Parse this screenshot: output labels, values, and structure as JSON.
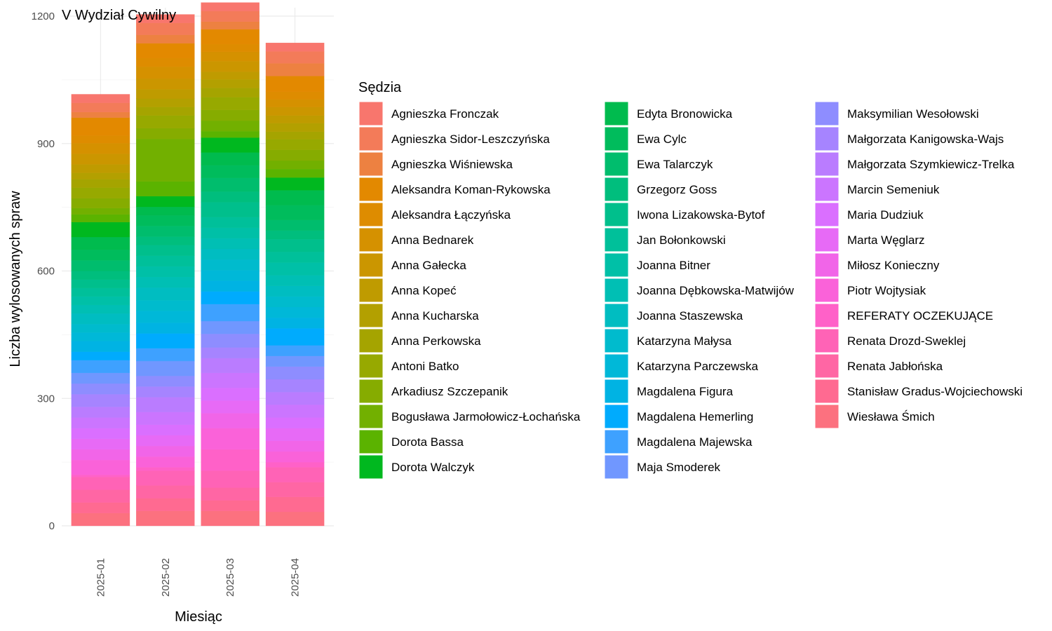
{
  "chart_data": {
    "type": "bar",
    "stacked": true,
    "title": "V Wydział Cywilny",
    "xlabel": "Miesiąc",
    "ylabel": "Liczba wylosowanych spraw",
    "ylim": [
      0,
      1200
    ],
    "yticks": [
      0,
      300,
      600,
      900,
      1200
    ],
    "grid": true,
    "legend_title": "Sędzia",
    "legend_position": "right",
    "categories": [
      "2025-01",
      "2025-02",
      "2025-03",
      "2025-04"
    ],
    "series": [
      {
        "name": "Agnieszka Fronczak",
        "color": "#F8766D",
        "values": [
          20,
          20,
          20,
          20
        ]
      },
      {
        "name": "Agnieszka Sidor-Leszczyńska",
        "color": "#F37B59",
        "values": [
          22,
          28,
          25,
          28
        ]
      },
      {
        "name": "Agnieszka Wiśniewska",
        "color": "#ED8141",
        "values": [
          13,
          20,
          18,
          30
        ]
      },
      {
        "name": "Aleksandra Koman-Rykowska",
        "color": "#E38900",
        "values": [
          42,
          35,
          35,
          37
        ]
      },
      {
        "name": "Aleksandra Łączyńska",
        "color": "#DE8C00",
        "values": [
          18,
          20,
          18,
          18
        ]
      },
      {
        "name": "Anna Bednarek",
        "color": "#D59100",
        "values": [
          25,
          28,
          22,
          18
        ]
      },
      {
        "name": "Anna Gałecka",
        "color": "#CB9600",
        "values": [
          25,
          25,
          25,
          20
        ]
      },
      {
        "name": "Anna Kopeć",
        "color": "#BF9B00",
        "values": [
          20,
          22,
          18,
          18
        ]
      },
      {
        "name": "Anna Kucharska",
        "color": "#B3A000",
        "values": [
          15,
          20,
          20,
          20
        ]
      },
      {
        "name": "Anna Perkowska",
        "color": "#A5A400",
        "values": [
          20,
          20,
          22,
          18
        ]
      },
      {
        "name": "Antoni Batko",
        "color": "#97A900",
        "values": [
          25,
          30,
          30,
          25
        ]
      },
      {
        "name": "Arkadiusz Szczepanik",
        "color": "#86AC00",
        "values": [
          23,
          25,
          25,
          25
        ]
      },
      {
        "name": "Bogusława Jarmołowicz-Łochańska",
        "color": "#72B000",
        "values": [
          15,
          100,
          25,
          20
        ]
      },
      {
        "name": "Dorota Bassa",
        "color": "#5BB300",
        "values": [
          18,
          35,
          15,
          20
        ]
      },
      {
        "name": "Dorota Walczyk",
        "color": "#00B81F",
        "values": [
          35,
          25,
          35,
          30
        ]
      },
      {
        "name": "Edyta Bronowicka",
        "color": "#00BB4E",
        "values": [
          30,
          20,
          30,
          35
        ]
      },
      {
        "name": "Ewa Cylc",
        "color": "#00BC5C",
        "values": [
          25,
          25,
          30,
          35
        ]
      },
      {
        "name": "Ewa Talarczyk",
        "color": "#00BD6D",
        "values": [
          25,
          25,
          32,
          25
        ]
      },
      {
        "name": "Grzegorz Goss",
        "color": "#00BE7D",
        "values": [
          20,
          20,
          25,
          20
        ]
      },
      {
        "name": "Iwona Lizakowska-Bytof",
        "color": "#00BF8C",
        "values": [
          20,
          25,
          35,
          30
        ]
      },
      {
        "name": "Jan Bołonkowski",
        "color": "#00C09A",
        "values": [
          20,
          25,
          25,
          25
        ]
      },
      {
        "name": "Joanna Bitner",
        "color": "#00C0A7",
        "values": [
          20,
          25,
          25,
          30
        ]
      },
      {
        "name": "Joanna Dębkowska-Matwijów",
        "color": "#00BFB4",
        "values": [
          20,
          25,
          25,
          25
        ]
      },
      {
        "name": "Joanna Staszewska",
        "color": "#00BDC1",
        "values": [
          25,
          30,
          25,
          25
        ]
      },
      {
        "name": "Katarzyna Małysa",
        "color": "#00BBCD",
        "values": [
          20,
          25,
          25,
          25
        ]
      },
      {
        "name": "Katarzyna Parczewska",
        "color": "#00B8D8",
        "values": [
          20,
          28,
          25,
          25
        ]
      },
      {
        "name": "Magdalena Figura",
        "color": "#00B3E3",
        "values": [
          25,
          25,
          25,
          25
        ]
      },
      {
        "name": "Magdalena Hemerling",
        "color": "#00ABFD",
        "values": [
          20,
          35,
          30,
          40
        ]
      },
      {
        "name": "Magdalena Majewska",
        "color": "#3EA1FF",
        "values": [
          30,
          30,
          40,
          25
        ]
      },
      {
        "name": "Maja Smoderek",
        "color": "#7097FF",
        "values": [
          25,
          35,
          30,
          25
        ]
      },
      {
        "name": "Maksymilian Wesołowski",
        "color": "#8E8DFF",
        "values": [
          25,
          25,
          32,
          30
        ]
      },
      {
        "name": "Małgorzata Kanigowska-Wajs",
        "color": "#A684FF",
        "values": [
          30,
          25,
          25,
          30
        ]
      },
      {
        "name": "Małgorzata Szymkiewicz-Trelka",
        "color": "#BA7CFF",
        "values": [
          25,
          35,
          35,
          30
        ]
      },
      {
        "name": "Marcin Semeniuk",
        "color": "#CB75FF",
        "values": [
          25,
          30,
          35,
          30
        ]
      },
      {
        "name": "Maria Dudziuk",
        "color": "#DA6FFF",
        "values": [
          25,
          25,
          30,
          25
        ]
      },
      {
        "name": "Marta Węglarz",
        "color": "#E76AF6",
        "values": [
          25,
          25,
          30,
          30
        ]
      },
      {
        "name": "Miłosz Konieczny",
        "color": "#F165E8",
        "values": [
          25,
          25,
          35,
          25
        ]
      },
      {
        "name": "Piotr Wojtysiak",
        "color": "#FA62D9",
        "values": [
          35,
          25,
          50,
          25
        ]
      },
      {
        "name": "REFERATY OCZEKUJĄCE",
        "color": "#FF61C8",
        "values": [
          5,
          8,
          50,
          12
        ]
      },
      {
        "name": "Renata Drozd-Sweklej",
        "color": "#FF63B6",
        "values": [
          30,
          35,
          40,
          35
        ]
      },
      {
        "name": "Renata Jabłońska",
        "color": "#FF66A4",
        "values": [
          30,
          30,
          30,
          35
        ]
      },
      {
        "name": "Stanisław Gradus-Wojciechowski",
        "color": "#FF6A91",
        "values": [
          25,
          30,
          25,
          35
        ]
      },
      {
        "name": "Wiesława Śmich",
        "color": "#FC717F",
        "values": [
          30,
          35,
          35,
          33
        ]
      }
    ]
  }
}
